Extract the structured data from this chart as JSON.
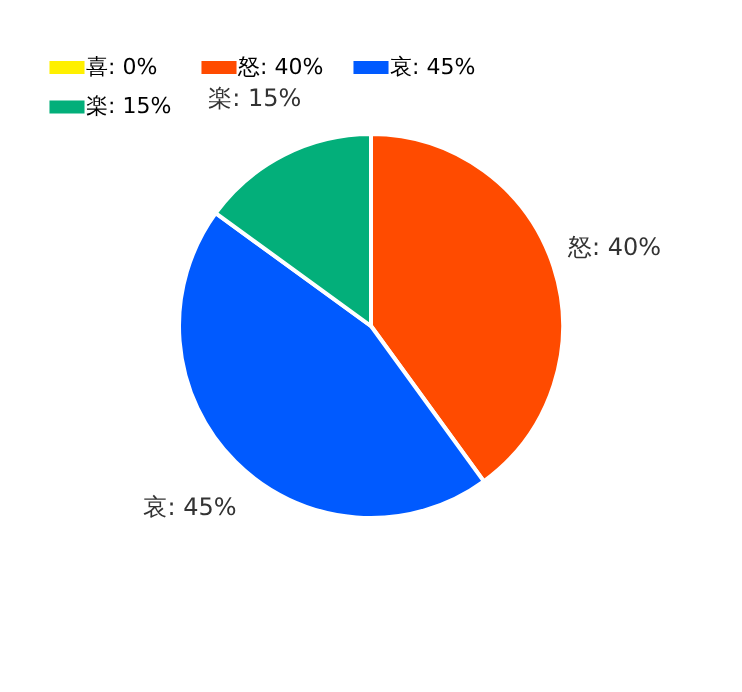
{
  "chart_data": {
    "type": "pie",
    "categories": [
      "喜: 0%",
      "怒: 40%",
      "哀: 45%",
      "楽: 15%"
    ],
    "values": [
      0,
      40,
      45,
      15
    ],
    "colors": [
      "#fff000",
      "#ff4b00",
      "#005aff",
      "#03af7a"
    ],
    "value_labels": [
      null,
      "怒: 40%",
      "哀: 45%",
      "楽: 15%"
    ],
    "legend": "top left"
  }
}
